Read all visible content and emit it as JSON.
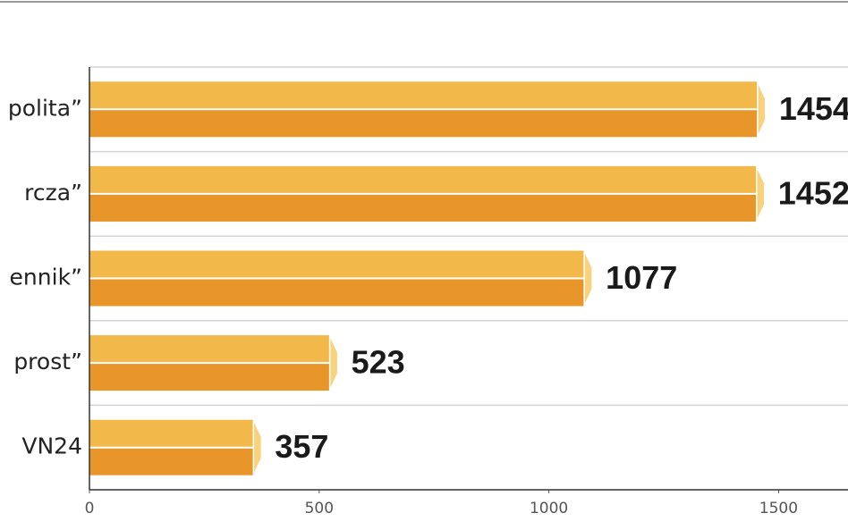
{
  "chart_data": {
    "type": "bar",
    "orientation": "horizontal",
    "categories": [
      "polita”",
      "rcza”",
      "ennik”",
      "prost”",
      "VN24"
    ],
    "values": [
      1454,
      1452,
      1077,
      523,
      357
    ],
    "color": "#eda23a",
    "xlim": [
      0,
      1651
    ],
    "xticks": [
      0,
      500,
      1000,
      1500
    ]
  }
}
